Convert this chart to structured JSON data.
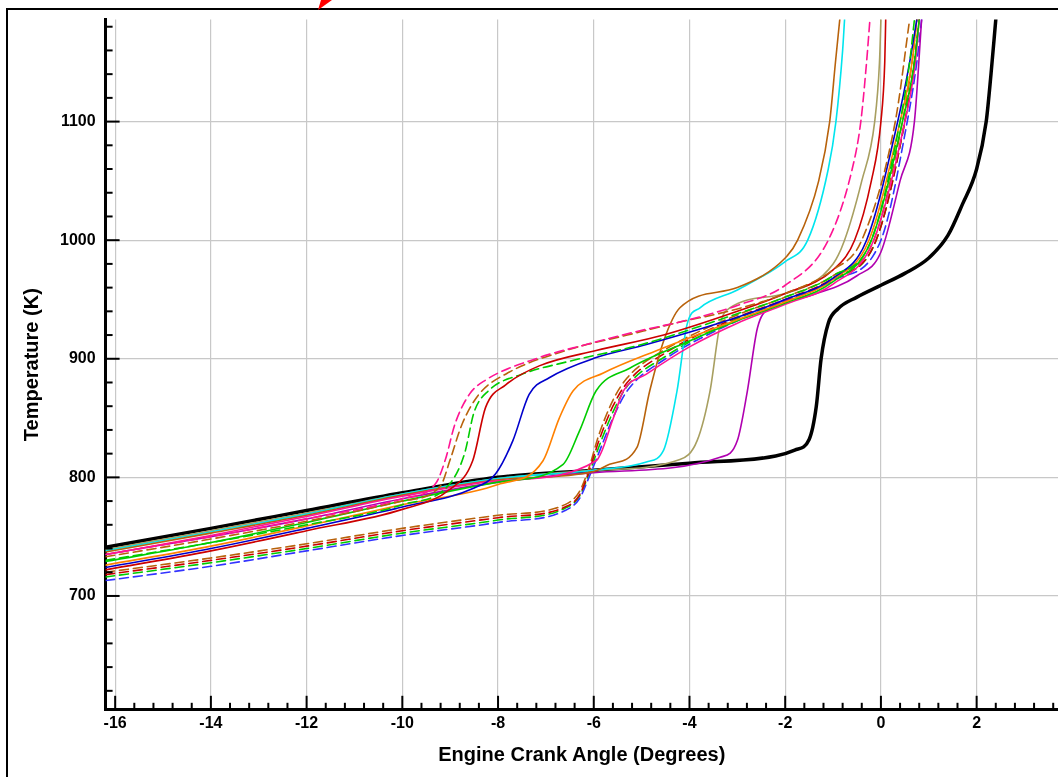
{
  "chart_data": {
    "type": "line",
    "xlabel": "Engine Crank Angle (Degrees)",
    "ylabel": "Temperature (K)",
    "xlim": [
      -16.2,
      3.7
    ],
    "ylim": [
      604,
      1186
    ],
    "xticks": [
      {
        "value": -16,
        "label": "-16"
      },
      {
        "value": -15.6,
        "label": null
      },
      {
        "value": -15.2,
        "label": null
      },
      {
        "value": -14.8,
        "label": null
      },
      {
        "value": -14.4,
        "label": null
      },
      {
        "value": -14,
        "label": "-14"
      },
      {
        "value": -13.6,
        "label": null
      },
      {
        "value": -13.2,
        "label": null
      },
      {
        "value": -12.8,
        "label": null
      },
      {
        "value": -12.4,
        "label": null
      },
      {
        "value": -12,
        "label": "-12"
      },
      {
        "value": -11.6,
        "label": null
      },
      {
        "value": -11.2,
        "label": null
      },
      {
        "value": -10.8,
        "label": null
      },
      {
        "value": -10.4,
        "label": null
      },
      {
        "value": -10,
        "label": "-10"
      },
      {
        "value": -9.6,
        "label": null
      },
      {
        "value": -9.2,
        "label": null
      },
      {
        "value": -8.8,
        "label": null
      },
      {
        "value": -8.4,
        "label": null
      },
      {
        "value": -8,
        "label": "-8"
      },
      {
        "value": -7.6,
        "label": null
      },
      {
        "value": -7.2,
        "label": null
      },
      {
        "value": -6.8,
        "label": null
      },
      {
        "value": -6.4,
        "label": null
      },
      {
        "value": -6,
        "label": "-6"
      },
      {
        "value": -5.6,
        "label": null
      },
      {
        "value": -5.2,
        "label": null
      },
      {
        "value": -4.8,
        "label": null
      },
      {
        "value": -4.4,
        "label": null
      },
      {
        "value": -4,
        "label": "-4"
      },
      {
        "value": -3.6,
        "label": null
      },
      {
        "value": -3.2,
        "label": null
      },
      {
        "value": -2.8,
        "label": null
      },
      {
        "value": -2.4,
        "label": null
      },
      {
        "value": -2,
        "label": "-2"
      },
      {
        "value": -1.6,
        "label": null
      },
      {
        "value": -1.2,
        "label": null
      },
      {
        "value": -0.8,
        "label": null
      },
      {
        "value": -0.4,
        "label": null
      },
      {
        "value": 0,
        "label": "0"
      },
      {
        "value": 0.4,
        "label": null
      },
      {
        "value": 0.8,
        "label": null
      },
      {
        "value": 1.2,
        "label": null
      },
      {
        "value": 1.6,
        "label": null
      },
      {
        "value": 2,
        "label": "2"
      },
      {
        "value": 2.4,
        "label": null
      },
      {
        "value": 2.8,
        "label": null
      },
      {
        "value": 3.2,
        "label": null
      },
      {
        "value": 3.6,
        "label": null
      }
    ],
    "yticks": [
      {
        "value": 620,
        "label": null
      },
      {
        "value": 640,
        "label": null
      },
      {
        "value": 660,
        "label": null
      },
      {
        "value": 680,
        "label": null
      },
      {
        "value": 700,
        "label": "700"
      },
      {
        "value": 720,
        "label": null
      },
      {
        "value": 740,
        "label": null
      },
      {
        "value": 760,
        "label": null
      },
      {
        "value": 780,
        "label": null
      },
      {
        "value": 800,
        "label": "800"
      },
      {
        "value": 820,
        "label": null
      },
      {
        "value": 840,
        "label": null
      },
      {
        "value": 860,
        "label": null
      },
      {
        "value": 880,
        "label": null
      },
      {
        "value": 900,
        "label": "900"
      },
      {
        "value": 920,
        "label": null
      },
      {
        "value": 940,
        "label": null
      },
      {
        "value": 960,
        "label": null
      },
      {
        "value": 980,
        "label": null
      },
      {
        "value": 1000,
        "label": "1000"
      },
      {
        "value": 1020,
        "label": null
      },
      {
        "value": 1040,
        "label": null
      },
      {
        "value": 1060,
        "label": null
      },
      {
        "value": 1080,
        "label": null
      },
      {
        "value": 1100,
        "label": "1100"
      },
      {
        "value": 1120,
        "label": null
      },
      {
        "value": 1140,
        "label": null
      },
      {
        "value": 1160,
        "label": null
      },
      {
        "value": 1180,
        "label": null
      }
    ],
    "grid": true,
    "legend": false,
    "marker": "none",
    "series": [
      {
        "color": "#ff1493",
        "line_style": "dashed",
        "x": [
          -16.2,
          -14,
          -12,
          -10,
          -9.3,
          -9.1,
          -8.9,
          -8.6,
          -8.26,
          -7.14,
          -6.16,
          -5.1,
          -4,
          -3,
          -2,
          -1.1,
          -0.6,
          -0.42,
          -0.3,
          -0.23
        ],
        "values": [
          735,
          750,
          765,
          782,
          795,
          815,
          845,
          870,
          882,
          901,
          912,
          923,
          933,
          945,
          962,
          1000,
          1060,
          1100,
          1150,
          1186
        ]
      },
      {
        "color": "#b8620b",
        "line_style": "dashed",
        "x": [
          -16.2,
          -14,
          -12,
          -10,
          -9.2,
          -9.0,
          -8.75,
          -8.4,
          -7.8,
          -6.5,
          -5.3,
          -4.3,
          -3,
          -2,
          -1,
          -0.4,
          0.3,
          0.6
        ],
        "values": [
          733,
          748,
          763,
          780,
          793,
          815,
          845,
          870,
          888,
          908,
          920,
          930,
          942,
          955,
          975,
          1000,
          1100,
          1186
        ]
      },
      {
        "color": "#cc0000",
        "line_style": "solid",
        "x": [
          -16.2,
          -14,
          -12,
          -10,
          -9,
          -8.53,
          -8.26,
          -7.84,
          -7.14,
          -5.95,
          -4.54,
          -3,
          -2,
          -1,
          -0.55,
          -0.2,
          0,
          0.08,
          0.1
        ],
        "values": [
          722,
          738,
          755,
          773,
          790,
          814,
          859,
          878,
          894,
          907,
          920,
          940,
          955,
          975,
          1000,
          1050,
          1100,
          1150,
          1186
        ]
      },
      {
        "color": "#00cc00",
        "line_style": "dashed",
        "x": [
          -16.2,
          -14,
          -12,
          -10,
          -9,
          -8.7,
          -8.5,
          -8.2,
          -7.5,
          -6.5,
          -5,
          -3,
          -2,
          -1,
          -0.2,
          0.4,
          0.6,
          0.7
        ],
        "values": [
          730,
          745,
          760,
          777,
          795,
          820,
          855,
          873,
          887,
          898,
          912,
          938,
          952,
          970,
          1000,
          1100,
          1150,
          1186
        ]
      },
      {
        "color": "#0000cc",
        "line_style": "solid",
        "x": [
          -16.2,
          -14,
          -12,
          -10,
          -8.5,
          -8.05,
          -7.69,
          -7.35,
          -6.93,
          -5.95,
          -4.9,
          -3,
          -2,
          -1,
          -0.3,
          0.35,
          0.6,
          0.75
        ],
        "values": [
          724,
          740,
          757,
          775,
          791,
          803,
          831,
          870,
          884,
          901,
          912,
          935,
          950,
          968,
          1000,
          1100,
          1150,
          1186
        ]
      },
      {
        "color": "#ff8000",
        "line_style": "solid",
        "x": [
          -16.2,
          -14,
          -12,
          -10,
          -8,
          -7.06,
          -6.72,
          -6.43,
          -5.8,
          -4.68,
          -3,
          -2,
          -1,
          -0.25,
          0.4,
          0.65,
          0.75
        ],
        "values": [
          726,
          742,
          759,
          777,
          794,
          814,
          850,
          873,
          888,
          907,
          933,
          948,
          967,
          1000,
          1100,
          1150,
          1186
        ]
      },
      {
        "color": "#00cc00",
        "line_style": "solid",
        "x": [
          -16.2,
          -14,
          -12,
          -10,
          -8,
          -6.64,
          -6.3,
          -5.95,
          -5.25,
          -4,
          -3,
          -2,
          -1,
          -0.2,
          0.45,
          0.7,
          0.8
        ],
        "values": [
          729,
          745,
          762,
          780,
          796,
          811,
          839,
          873,
          892,
          915,
          932,
          947,
          965,
          1000,
          1100,
          1150,
          1186
        ]
      },
      {
        "color": "#ff1493",
        "line_style": "solid",
        "x": [
          -16.2,
          -14,
          -12,
          -10,
          -8,
          -5.95,
          -5.59,
          -5.38,
          -4.9,
          -4,
          -3,
          -2,
          -1,
          -0.15,
          0.5,
          0.72,
          0.8
        ],
        "values": [
          735,
          751,
          767,
          784,
          797,
          814,
          850,
          873,
          887,
          910,
          930,
          946,
          963,
          1000,
          1100,
          1150,
          1186
        ]
      },
      {
        "color": "#b8620b",
        "line_style": "solid",
        "x": [
          -16.2,
          -14,
          -12,
          -10,
          -8,
          -6,
          -5.67,
          -5.1,
          -4.83,
          -4.54,
          -4.2,
          -3,
          -2,
          -1.74,
          -1.3,
          -1.07,
          -0.95,
          -0.86
        ],
        "values": [
          737,
          753,
          768,
          785,
          798,
          805,
          811,
          825,
          873,
          915,
          943,
          960,
          985,
          1000,
          1050,
          1100,
          1150,
          1186
        ]
      },
      {
        "color": "#00e5ee",
        "line_style": "solid",
        "x": [
          -16.2,
          -14,
          -12,
          -10,
          -8,
          -6,
          -4.9,
          -4.54,
          -4.26,
          -4.05,
          -3.78,
          -3,
          -2,
          -1.53,
          -1.1,
          -0.94,
          -0.8,
          -0.76
        ],
        "values": [
          738,
          754,
          769,
          786,
          799,
          806,
          813,
          823,
          873,
          929,
          943,
          958,
          982,
          1000,
          1060,
          1100,
          1160,
          1186
        ]
      },
      {
        "color": "#a89f60",
        "line_style": "solid",
        "x": [
          -16.2,
          -14,
          -12,
          -10,
          -8,
          -6,
          -4.2,
          -3.84,
          -3.57,
          -3.36,
          -3.15,
          -2,
          -1,
          -0.76,
          -0.4,
          -0.13,
          -0.03,
          0
        ],
        "values": [
          739,
          755,
          770,
          786,
          799,
          806,
          815,
          831,
          873,
          929,
          943,
          955,
          980,
          1000,
          1050,
          1100,
          1150,
          1186
        ]
      },
      {
        "color": "#b000b0",
        "line_style": "solid",
        "x": [
          -16.2,
          -14,
          -12,
          -10,
          -8,
          -6,
          -3.36,
          -3.0,
          -2.79,
          -2.58,
          -2.31,
          -1.5,
          -0.5,
          0,
          0.4,
          0.7,
          0.85
        ],
        "values": [
          735,
          750,
          765,
          782,
          796,
          804,
          817,
          831,
          873,
          926,
          943,
          953,
          970,
          990,
          1050,
          1100,
          1186
        ]
      },
      {
        "color": "#cc0000",
        "line_style": "dashed",
        "x": [
          -16.2,
          -14,
          -12,
          -10,
          -8,
          -6.6,
          -6.3,
          -6.1,
          -5.9,
          -5.6,
          -5.3,
          -4.5,
          -3,
          -2,
          -1,
          -0.1,
          0.5,
          0.7,
          0.8
        ],
        "values": [
          718,
          730,
          742,
          755,
          766,
          775,
          785,
          805,
          830,
          860,
          880,
          905,
          935,
          950,
          968,
          1000,
          1100,
          1150,
          1186
        ]
      },
      {
        "color": "#b8620b",
        "line_style": "dashed",
        "x": [
          -16.2,
          -14,
          -12,
          -10,
          -8,
          -6.6,
          -6.3,
          -6.1,
          -5.9,
          -5.6,
          -5.3,
          -4.5,
          -3,
          -2,
          -1,
          -0.15,
          0.45,
          0.65,
          0.75
        ],
        "values": [
          720,
          732,
          744,
          757,
          768,
          777,
          788,
          808,
          835,
          865,
          884,
          908,
          937,
          952,
          970,
          1000,
          1100,
          1150,
          1186
        ]
      },
      {
        "color": "#3333ff",
        "line_style": "dashed",
        "x": [
          -16.2,
          -14,
          -12,
          -10,
          -8,
          -6.6,
          -6.3,
          -6.1,
          -5.9,
          -5.6,
          -5.3,
          -4.5,
          -3,
          -2,
          -1,
          0,
          0.55,
          0.75,
          0.85
        ],
        "values": [
          713,
          725,
          738,
          751,
          762,
          772,
          782,
          800,
          820,
          850,
          873,
          900,
          932,
          948,
          966,
          1000,
          1100,
          1150,
          1186
        ]
      },
      {
        "color": "#00cc00",
        "line_style": "dashed",
        "x": [
          -16.2,
          -14,
          -12,
          -10,
          -8,
          -6.6,
          -6.3,
          -6.1,
          -5.9,
          -5.6,
          -5.3,
          -4.5,
          -3,
          -2,
          -1,
          -0.1,
          0.5,
          0.7,
          0.8
        ],
        "values": [
          716,
          728,
          740,
          753,
          764,
          774,
          784,
          803,
          825,
          855,
          877,
          902,
          934,
          949,
          967,
          1000,
          1100,
          1150,
          1186
        ]
      },
      {
        "color": "#000000",
        "line_style": "solid",
        "x": [
          -16.2,
          -14,
          -12,
          -10,
          -8,
          -6,
          -4,
          -2.2,
          -1.8,
          -1.5,
          -1.35,
          -1.25,
          -1.1,
          -0.9,
          -0.5,
          0,
          0.5,
          1,
          1.4,
          1.7,
          2.0,
          2.2,
          2.3,
          2.4
        ],
        "values": [
          741,
          757,
          772,
          787,
          800,
          806,
          812,
          818,
          823,
          832,
          860,
          900,
          930,
          942,
          952,
          962,
          972,
          985,
          1004,
          1030,
          1060,
          1100,
          1140,
          1186
        ]
      }
    ]
  }
}
